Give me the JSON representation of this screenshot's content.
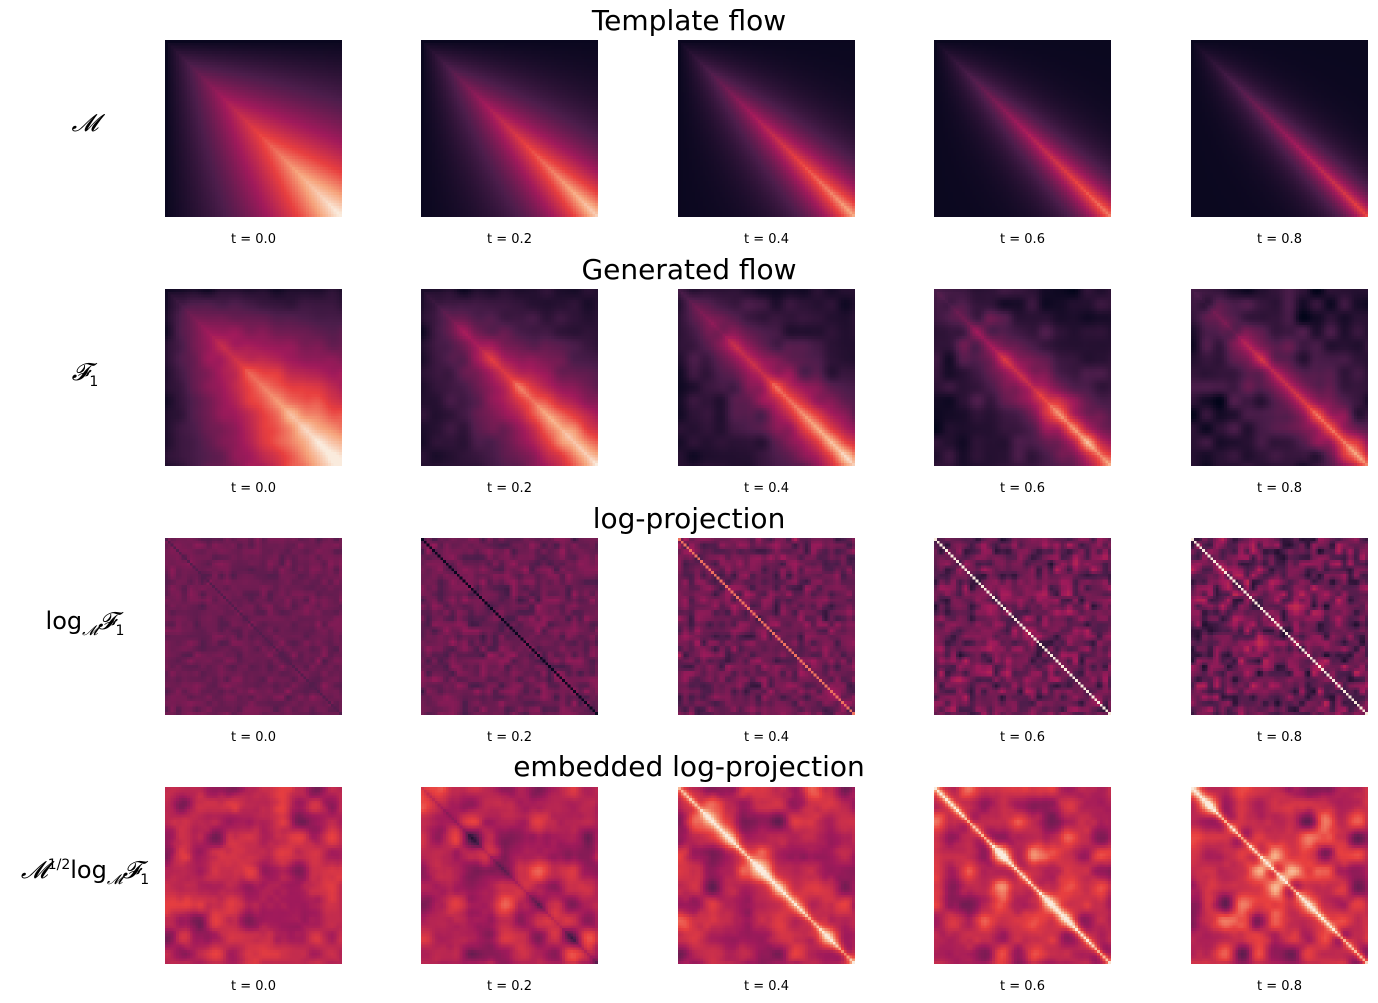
{
  "chart_data": {
    "type": "heatmap",
    "grid": false,
    "columns": [
      "t = 0.0",
      "t = 0.2",
      "t = 0.4",
      "t = 0.6",
      "t = 0.8"
    ],
    "rows": [
      {
        "title": "Template flow",
        "label_parts": [
          {
            "t": "𝓜",
            "k": "calig"
          }
        ],
        "pattern": "template",
        "panel_values": [
          0.0,
          0.2,
          0.4,
          0.6,
          0.8
        ]
      },
      {
        "title": "Generated flow",
        "label_parts": [
          {
            "t": "𝓕",
            "k": "calig"
          },
          {
            "t": "1",
            "k": "sub"
          }
        ],
        "pattern": "generated",
        "panel_values": [
          0.0,
          0.2,
          0.4,
          0.6,
          0.8
        ]
      },
      {
        "title": "log-projection",
        "label_parts": [
          {
            "t": "log",
            "k": "text"
          },
          {
            "t": "𝓜",
            "k": "sub calig"
          },
          {
            "t": "𝓕",
            "k": "calig"
          },
          {
            "t": "1",
            "k": "sub"
          }
        ],
        "pattern": "logproj",
        "panel_values": [
          0.0,
          0.2,
          0.4,
          0.6,
          0.8
        ]
      },
      {
        "title": "embedded log-projection",
        "label_parts": [
          {
            "t": "𝓜",
            "k": "calig"
          },
          {
            "t": "1/2",
            "k": "sup"
          },
          {
            "t": "log",
            "k": "text"
          },
          {
            "t": "𝓜",
            "k": "sub calig"
          },
          {
            "t": "𝓕",
            "k": "calig"
          },
          {
            "t": "1",
            "k": "sub"
          }
        ],
        "pattern": "embedded",
        "panel_values": [
          0.0,
          0.2,
          0.4,
          0.6,
          0.8
        ]
      }
    ],
    "colormap": [
      "#03051a",
      "#4c1d4b",
      "#a11a5b",
      "#e83f3f",
      "#f6a47c",
      "#faebdd"
    ]
  }
}
